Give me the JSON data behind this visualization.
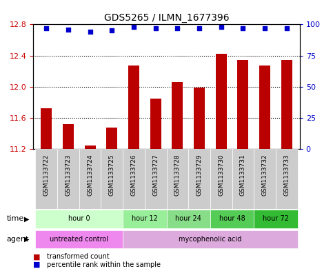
{
  "title": "GDS5265 / ILMN_1677396",
  "samples": [
    "GSM1133722",
    "GSM1133723",
    "GSM1133724",
    "GSM1133725",
    "GSM1133726",
    "GSM1133727",
    "GSM1133728",
    "GSM1133729",
    "GSM1133730",
    "GSM1133731",
    "GSM1133732",
    "GSM1133733"
  ],
  "bar_values": [
    11.72,
    11.52,
    11.25,
    11.48,
    12.27,
    11.85,
    12.06,
    11.99,
    12.42,
    12.34,
    12.27,
    12.34
  ],
  "percentile_values": [
    97,
    96,
    94,
    95,
    98,
    97,
    97,
    97,
    98,
    97,
    97,
    97
  ],
  "bar_color": "#bb0000",
  "percentile_color": "#0000cc",
  "ylim_left": [
    11.2,
    12.8
  ],
  "ylim_right": [
    0,
    100
  ],
  "yticks_left": [
    11.2,
    11.6,
    12.0,
    12.4,
    12.8
  ],
  "yticks_right": [
    0,
    25,
    50,
    75,
    100
  ],
  "time_groups": [
    {
      "label": "hour 0",
      "start": 0,
      "end": 4,
      "color": "#ccffcc"
    },
    {
      "label": "hour 12",
      "start": 4,
      "end": 6,
      "color": "#99ee99"
    },
    {
      "label": "hour 24",
      "start": 6,
      "end": 8,
      "color": "#88dd88"
    },
    {
      "label": "hour 48",
      "start": 8,
      "end": 10,
      "color": "#55cc55"
    },
    {
      "label": "hour 72",
      "start": 10,
      "end": 12,
      "color": "#33bb33"
    }
  ],
  "agent_groups": [
    {
      "label": "untreated control",
      "start": 0,
      "end": 4,
      "color": "#ee88ee"
    },
    {
      "label": "mycophenolic acid",
      "start": 4,
      "end": 12,
      "color": "#ddaadd"
    }
  ],
  "legend_bar_label": "transformed count",
  "legend_pct_label": "percentile rank within the sample",
  "grid_color": "#000000",
  "background_color": "#ffffff",
  "tick_label_color_left": "#cc0000",
  "tick_label_color_right": "#0000cc"
}
